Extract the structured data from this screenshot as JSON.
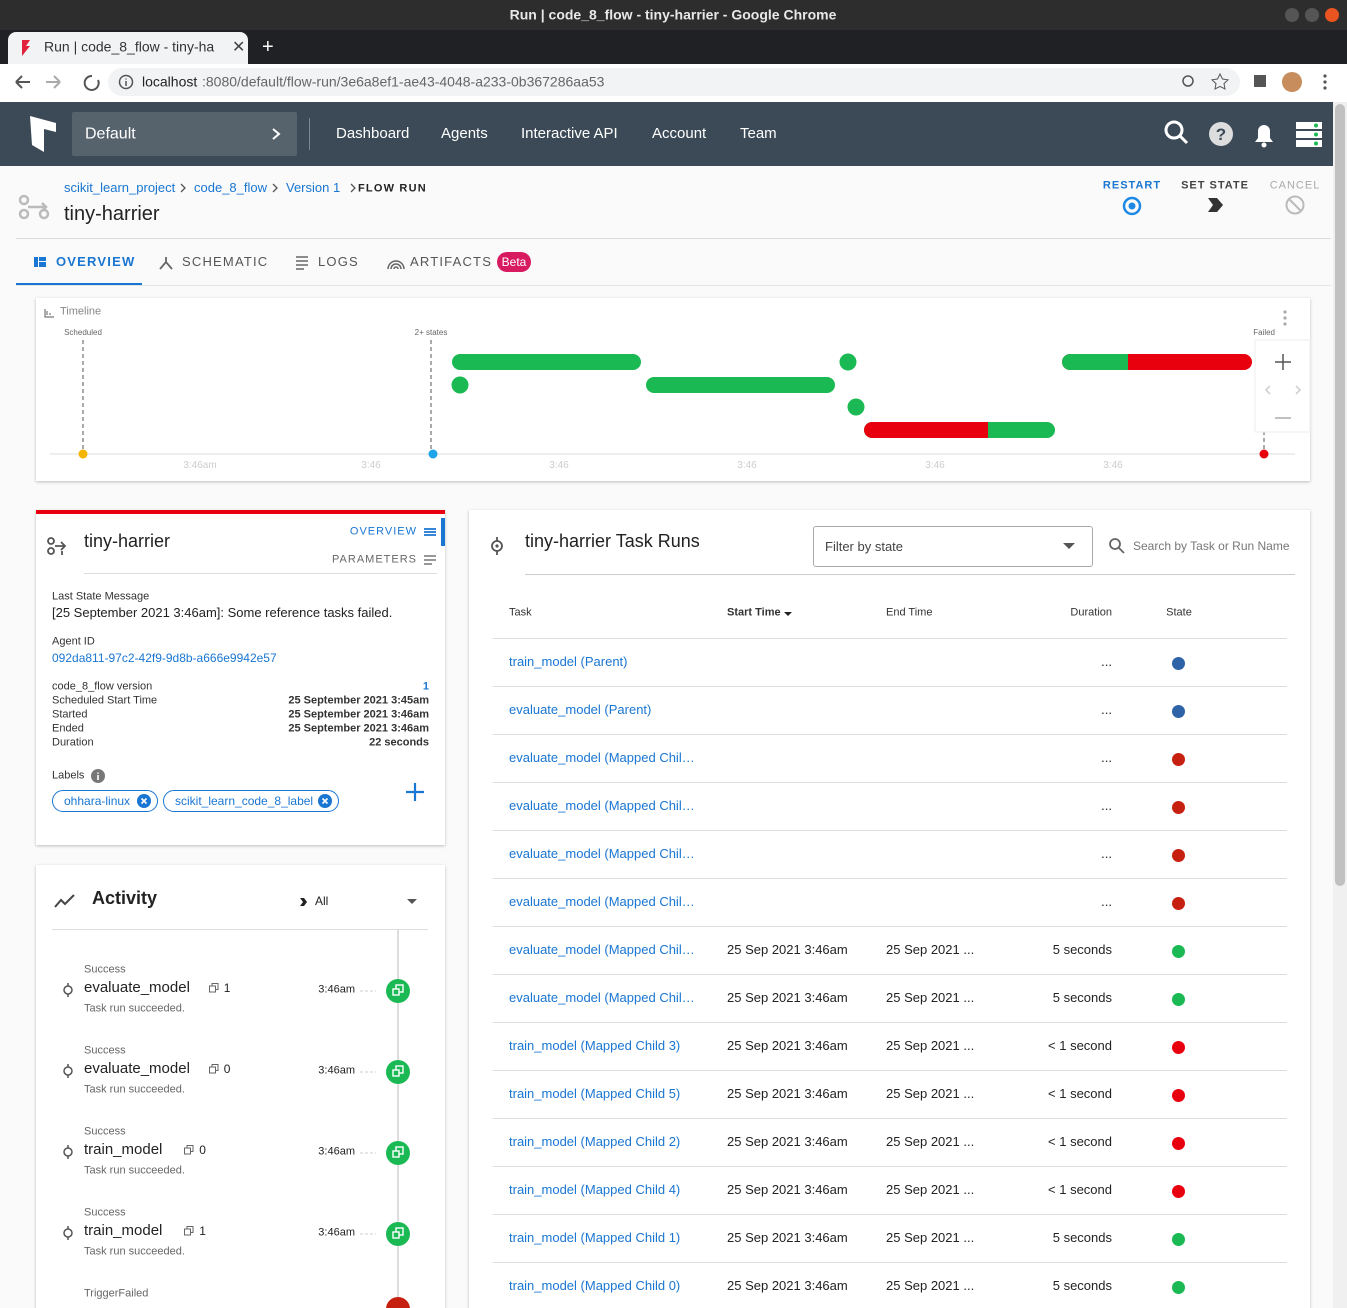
{
  "browser": {
    "window_title": "Run | code_8_flow - tiny-harrier - Google Chrome",
    "tab_title": "Run | code_8_flow - tiny-ha",
    "url_host": "localhost",
    "url_path": ":8080/default/flow-run/3e6a8ef1-ae43-4048-a233-0b367286aa53"
  },
  "nav": {
    "team": "Default",
    "links": [
      "Dashboard",
      "Agents",
      "Interactive API",
      "Account",
      "Team"
    ]
  },
  "header": {
    "breadcrumbs": [
      "scikit_learn_project",
      "code_8_flow",
      "Version 1"
    ],
    "current": "FLOW RUN",
    "title": "tiny-harrier",
    "actions": [
      "RESTART",
      "SET STATE",
      "CANCEL"
    ]
  },
  "tabs": {
    "items": [
      "OVERVIEW",
      "SCHEMATIC",
      "LOGS",
      "ARTIFACTS"
    ],
    "badge": "Beta"
  },
  "timeline": {
    "title": "Timeline",
    "markers": [
      "Scheduled",
      "2+ states",
      "Failed"
    ],
    "ticks": [
      "3:46am",
      "3:46",
      "3:46",
      "3:46",
      "3:46",
      "3:46"
    ]
  },
  "details": {
    "title": "tiny-harrier",
    "tabs": [
      "OVERVIEW",
      "PARAMETERS"
    ],
    "last_state_label": "Last State Message",
    "last_state_message": "[25 September 2021 3:46am]: Some reference tasks failed.",
    "agent_label": "Agent ID",
    "agent_id": "092da811-97c2-42f9-9d8b-a666e9942e57",
    "fields": [
      {
        "key": "code_8_flow version",
        "value": "1"
      },
      {
        "key": "Scheduled Start Time",
        "value": "25 September 2021 3:45am"
      },
      {
        "key": "Started",
        "value": "25 September 2021 3:46am"
      },
      {
        "key": "Ended",
        "value": "25 September 2021 3:46am"
      },
      {
        "key": "Duration",
        "value": "22 seconds"
      }
    ],
    "labels_title": "Labels",
    "labels": [
      "ohhara-linux",
      "scikit_learn_code_8_label"
    ]
  },
  "activity": {
    "title": "Activity",
    "filter": "All",
    "items": [
      {
        "state": "Success",
        "name": "evaluate_model",
        "count": 1,
        "time": "3:46am",
        "message": "Task run succeeded."
      },
      {
        "state": "Success",
        "name": "evaluate_model",
        "count": 0,
        "time": "3:46am",
        "message": "Task run succeeded."
      },
      {
        "state": "Success",
        "name": "train_model",
        "count": 0,
        "time": "3:46am",
        "message": "Task run succeeded."
      },
      {
        "state": "Success",
        "name": "train_model",
        "count": 1,
        "time": "3:46am",
        "message": "Task run succeeded."
      }
    ],
    "last_state": "TriggerFailed"
  },
  "task_runs": {
    "title": "tiny-harrier Task Runs",
    "filter": "Filter by state",
    "search": "Search by Task or Run Name",
    "columns": [
      "Task",
      "Start Time",
      "End Time",
      "Duration",
      "State"
    ],
    "rows": [
      {
        "task": "train_model (Parent)",
        "start": null,
        "end": null,
        "duration": "...",
        "state_color": "#2f63a8"
      },
      {
        "task": "evaluate_model (Parent)",
        "start": null,
        "end": null,
        "duration": "...",
        "state_color": "#2f63a8"
      },
      {
        "task": "evaluate_model (Mapped Chil…",
        "start": null,
        "end": null,
        "duration": "...",
        "state_color": "#c62010"
      },
      {
        "task": "evaluate_model (Mapped Chil…",
        "start": null,
        "end": null,
        "duration": "...",
        "state_color": "#c62010"
      },
      {
        "task": "evaluate_model (Mapped Chil…",
        "start": null,
        "end": null,
        "duration": "...",
        "state_color": "#c62010"
      },
      {
        "task": "evaluate_model (Mapped Chil…",
        "start": null,
        "end": null,
        "duration": "...",
        "state_color": "#c62010"
      },
      {
        "task": "evaluate_model (Mapped Chil…",
        "start": "25 Sep 2021 3:46am",
        "end": "25 Sep 2021 ...",
        "duration": "5 seconds",
        "state_color": "#1bb954"
      },
      {
        "task": "evaluate_model (Mapped Chil…",
        "start": "25 Sep 2021 3:46am",
        "end": "25 Sep 2021 ...",
        "duration": "5 seconds",
        "state_color": "#1bb954"
      },
      {
        "task": "train_model (Mapped Child 3)",
        "start": "25 Sep 2021 3:46am",
        "end": "25 Sep 2021 ...",
        "duration": "< 1 second",
        "state_color": "#e8000f"
      },
      {
        "task": "train_model (Mapped Child 5)",
        "start": "25 Sep 2021 3:46am",
        "end": "25 Sep 2021 ...",
        "duration": "< 1 second",
        "state_color": "#e8000f"
      },
      {
        "task": "train_model (Mapped Child 2)",
        "start": "25 Sep 2021 3:46am",
        "end": "25 Sep 2021 ...",
        "duration": "< 1 second",
        "state_color": "#e8000f"
      },
      {
        "task": "train_model (Mapped Child 4)",
        "start": "25 Sep 2021 3:46am",
        "end": "25 Sep 2021 ...",
        "duration": "< 1 second",
        "state_color": "#e8000f"
      },
      {
        "task": "train_model (Mapped Child 1)",
        "start": "25 Sep 2021 3:46am",
        "end": "25 Sep 2021 ...",
        "duration": "5 seconds",
        "state_color": "#1bb954"
      },
      {
        "task": "train_model (Mapped Child 0)",
        "start": "25 Sep 2021 3:46am",
        "end": "25 Sep 2021 ...",
        "duration": "5 seconds",
        "state_color": "#1bb954"
      }
    ]
  }
}
